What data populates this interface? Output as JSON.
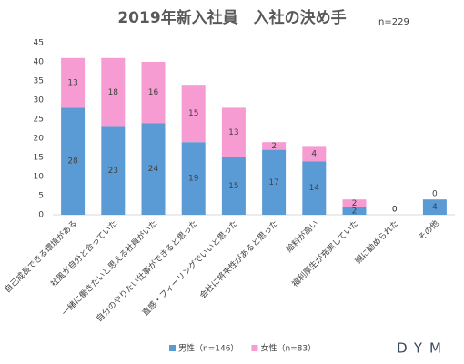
{
  "chart_data": {
    "type": "bar",
    "stacked": true,
    "title": "2019年新入社員　入社の決め手",
    "subtitle": "n=229",
    "categories": [
      "自己成長できる環境がある",
      "社風が自分と合っていた",
      "一緒に働きたいと思える社員がいた",
      "自分のやりたい仕事ができると思った",
      "直感・フィーリングでいいと思った",
      "会社に将来性があると思った",
      "給料が高い",
      "福利厚生が充実していた",
      "親に勧められた",
      "その他"
    ],
    "series": [
      {
        "name": "男性（n=146）",
        "color": "#5b9bd5",
        "values": [
          28,
          23,
          24,
          19,
          15,
          17,
          14,
          2,
          0,
          4
        ]
      },
      {
        "name": "女性（n=83）",
        "color": "#f79bd3",
        "values": [
          13,
          18,
          16,
          15,
          13,
          2,
          4,
          2,
          0,
          0
        ]
      }
    ],
    "ylim": [
      0,
      45
    ],
    "yticks": [
      0,
      5,
      10,
      15,
      20,
      25,
      30,
      35,
      40,
      45
    ],
    "legend": "bottom",
    "brand": "DYM"
  }
}
